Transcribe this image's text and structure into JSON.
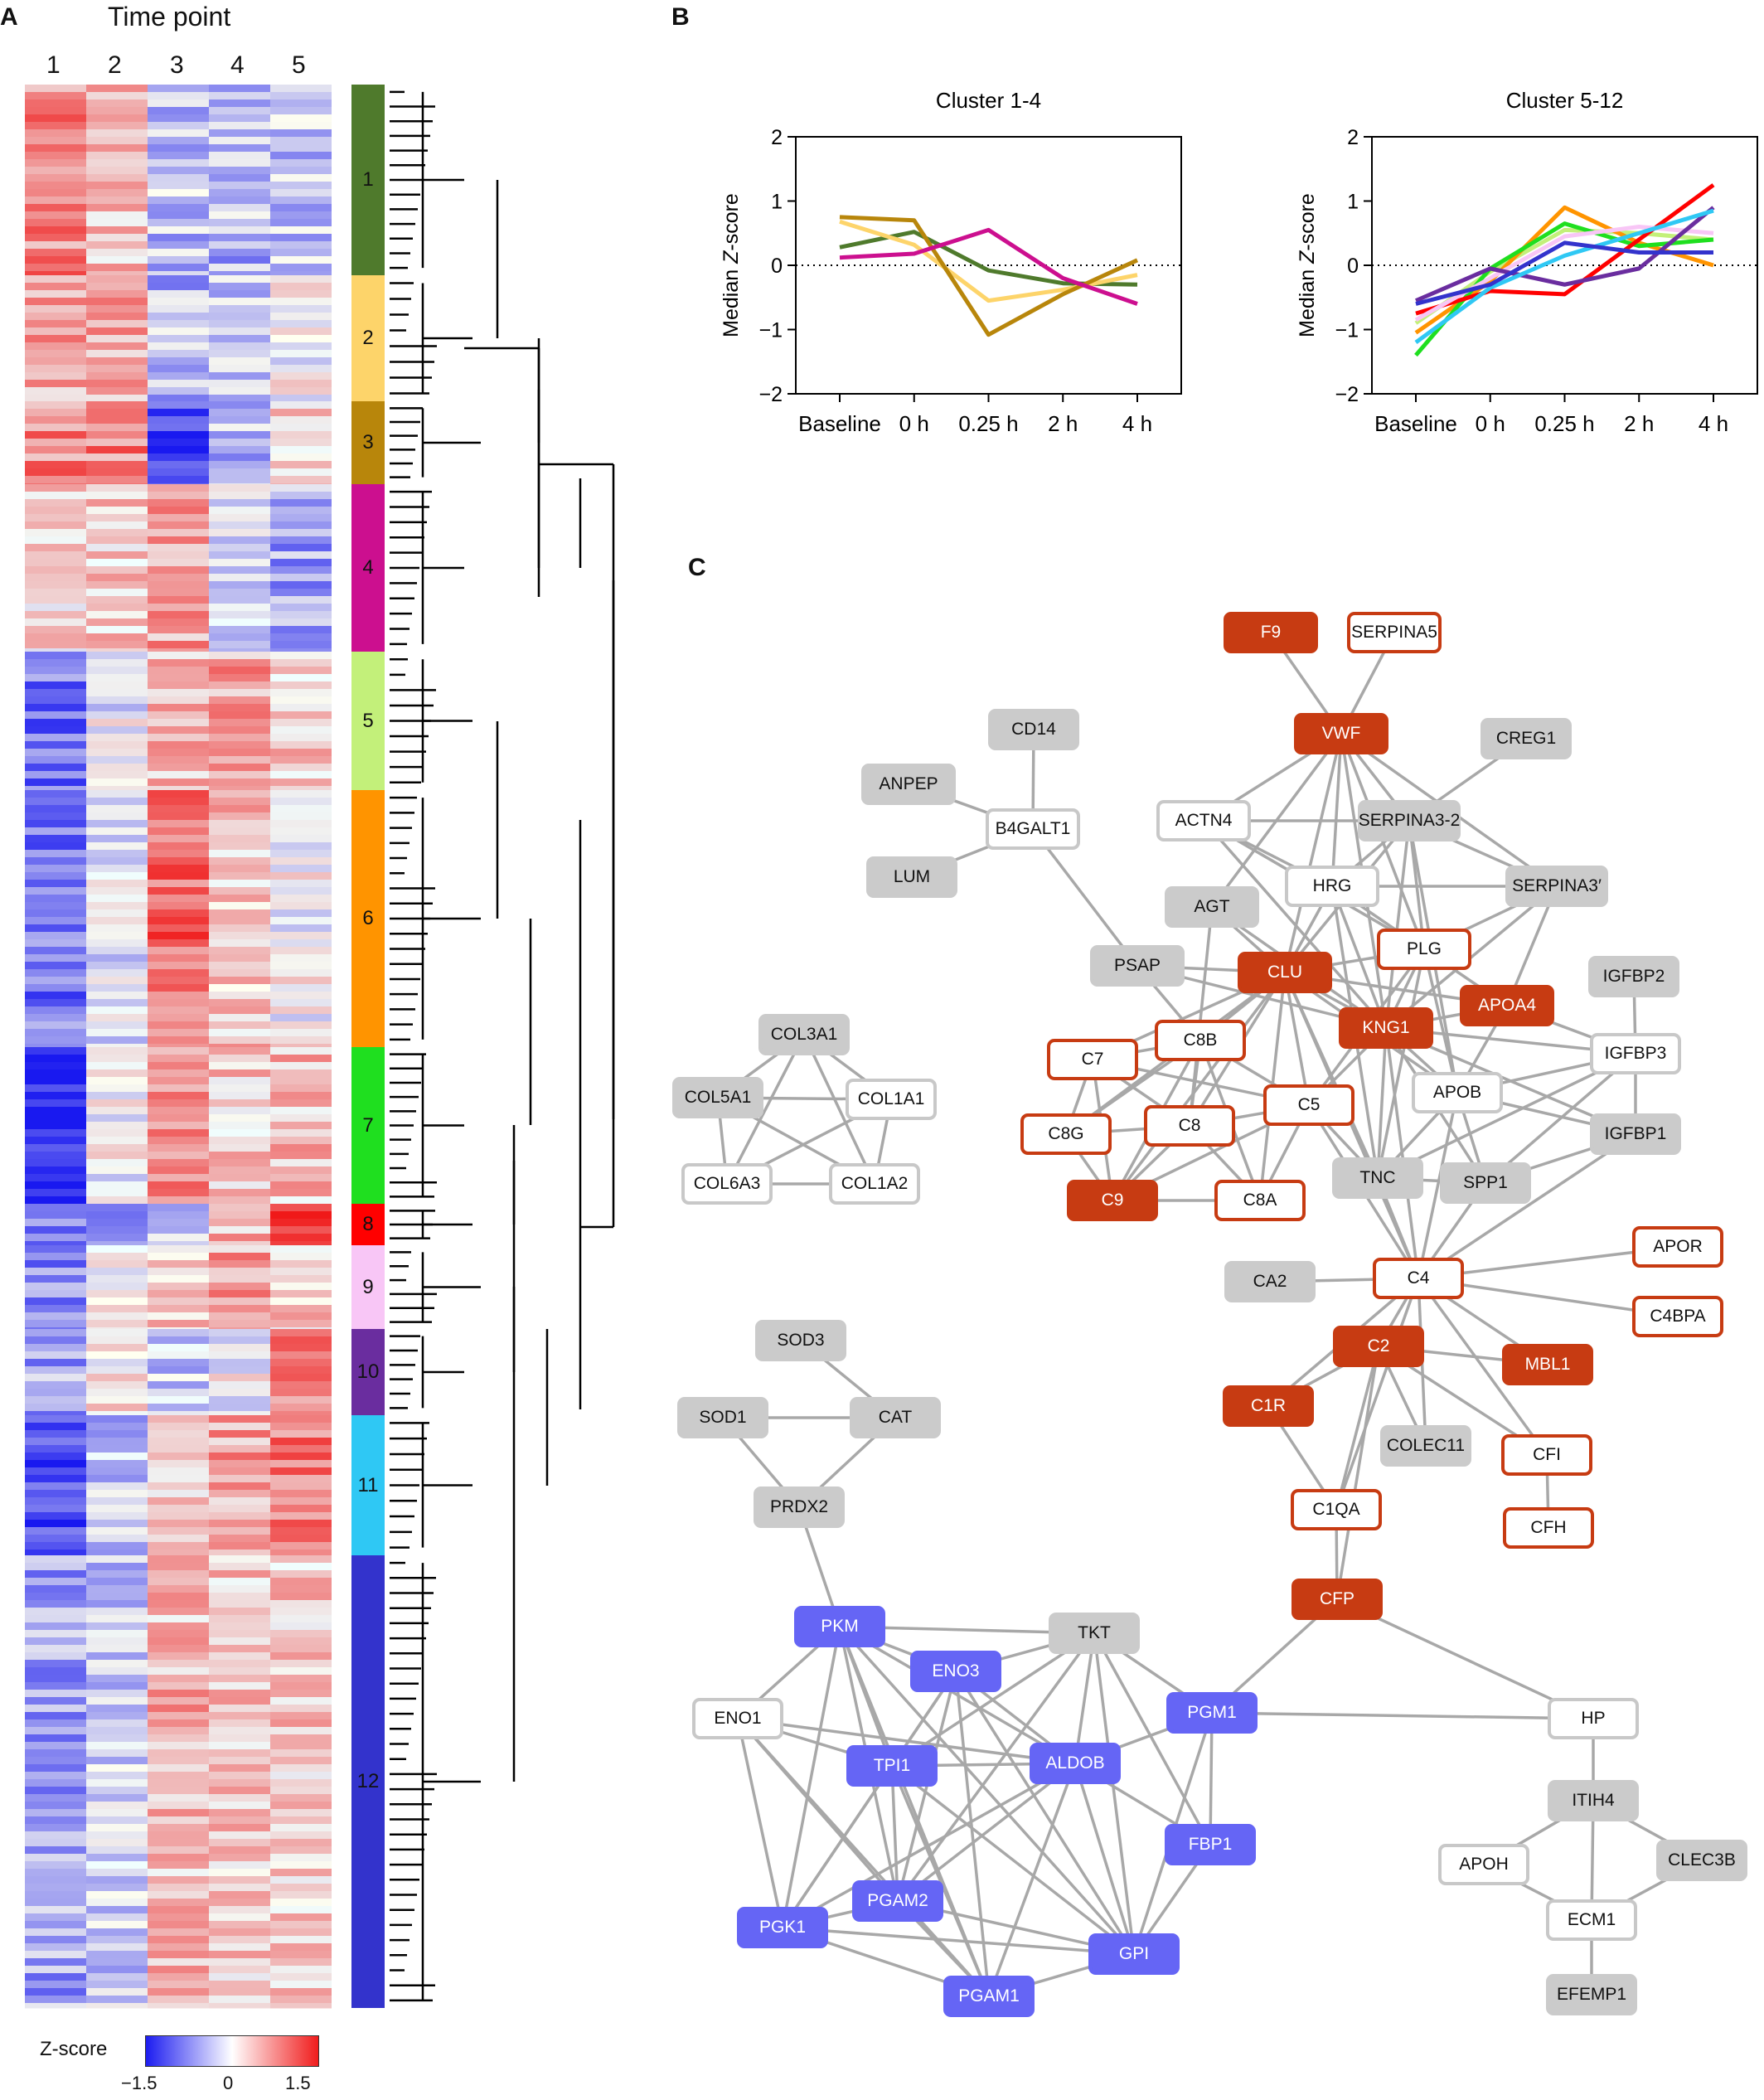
{
  "figure": {
    "panel_a": {
      "letter": "A",
      "title": "Time point",
      "columns": [
        "1",
        "2",
        "3",
        "4",
        "5"
      ],
      "colorbar": {
        "label": "Z-score",
        "ticks": [
          "−1.5",
          "0",
          "1.5"
        ],
        "low_color": "#1c1cf0",
        "mid_color": "#ffffff",
        "high_color": "#f01c1c"
      },
      "clusters": [
        {
          "label": "1",
          "color": "#4f7a2c"
        },
        {
          "label": "2",
          "color": "#fdd46a"
        },
        {
          "label": "3",
          "color": "#b8860b"
        },
        {
          "label": "4",
          "color": "#cc0f8f"
        },
        {
          "label": "5",
          "color": "#c3f07a"
        },
        {
          "label": "6",
          "color": "#ff9400"
        },
        {
          "label": "7",
          "color": "#1fdf1f"
        },
        {
          "label": "8",
          "color": "#ff0000"
        },
        {
          "label": "9",
          "color": "#f8c6f6"
        },
        {
          "label": "10",
          "color": "#6a2d9f"
        },
        {
          "label": "11",
          "color": "#2fc8f4"
        },
        {
          "label": "12",
          "color": "#3333cc"
        }
      ]
    },
    "panel_b": {
      "letter": "B"
    },
    "panel_c": {
      "letter": "C"
    }
  },
  "chart_data": [
    {
      "type": "line",
      "title": "Cluster 1-4",
      "ylabel": "Median Z-score",
      "categories": [
        "Baseline",
        "0 h",
        "0.25 h",
        "2 h",
        "4 h"
      ],
      "ylim": [
        -2,
        2
      ],
      "yticks": [
        "2",
        "1",
        "0",
        "−1",
        "−2"
      ],
      "zero_line": "dotted",
      "series": [
        {
          "cluster": "1",
          "color": "#4f7a2c",
          "values": [
            0.28,
            0.52,
            -0.08,
            -0.28,
            -0.3
          ]
        },
        {
          "cluster": "2",
          "color": "#fdd46a",
          "values": [
            0.68,
            0.32,
            -0.55,
            -0.38,
            -0.15
          ]
        },
        {
          "cluster": "3",
          "color": "#b8860b",
          "values": [
            0.75,
            0.7,
            -1.08,
            -0.45,
            0.08
          ]
        },
        {
          "cluster": "4",
          "color": "#cc0f8f",
          "values": [
            0.12,
            0.18,
            0.55,
            -0.2,
            -0.6
          ]
        }
      ]
    },
    {
      "type": "line",
      "title": "Cluster 5-12",
      "ylabel": "Median Z-score",
      "categories": [
        "Baseline",
        "0 h",
        "0.25 h",
        "2 h",
        "4 h"
      ],
      "ylim": [
        -2,
        2
      ],
      "yticks": [
        "2",
        "1",
        "0",
        "−1",
        "−2"
      ],
      "zero_line": "dotted",
      "series": [
        {
          "cluster": "5",
          "color": "#c3f07a",
          "values": [
            -0.9,
            -0.1,
            0.55,
            0.5,
            0.4
          ]
        },
        {
          "cluster": "6",
          "color": "#ff9400",
          "values": [
            -1.05,
            -0.25,
            0.9,
            0.35,
            0.0
          ]
        },
        {
          "cluster": "7",
          "color": "#1fdf1f",
          "values": [
            -1.4,
            -0.05,
            0.65,
            0.3,
            0.4
          ]
        },
        {
          "cluster": "8",
          "color": "#ff0000",
          "values": [
            -0.75,
            -0.4,
            -0.45,
            0.4,
            1.25
          ]
        },
        {
          "cluster": "9",
          "color": "#f8c6f6",
          "values": [
            -0.85,
            -0.2,
            0.45,
            0.6,
            0.5
          ]
        },
        {
          "cluster": "10",
          "color": "#6a2d9f",
          "values": [
            -0.55,
            -0.05,
            -0.3,
            -0.05,
            0.9
          ]
        },
        {
          "cluster": "11",
          "color": "#2fc8f4",
          "values": [
            -1.2,
            -0.35,
            0.15,
            0.5,
            0.85
          ]
        },
        {
          "cluster": "12",
          "color": "#3333cc",
          "values": [
            -0.6,
            -0.3,
            0.35,
            0.2,
            0.2
          ]
        }
      ]
    }
  ],
  "network": {
    "nodes": [
      {
        "id": "F9",
        "style": "red"
      },
      {
        "id": "SERPINA5",
        "style": "redout"
      },
      {
        "id": "VWF",
        "style": "red"
      },
      {
        "id": "CD14",
        "style": "gray"
      },
      {
        "id": "CREG1",
        "style": "gray"
      },
      {
        "id": "ANPEP",
        "style": "gray"
      },
      {
        "id": "B4GALT1",
        "style": "white"
      },
      {
        "id": "ACTN4",
        "style": "white"
      },
      {
        "id": "SERPINA3-2",
        "style": "gray"
      },
      {
        "id": "LUM",
        "style": "gray"
      },
      {
        "id": "HRG",
        "style": "white"
      },
      {
        "id": "SERPINA3′",
        "style": "gray"
      },
      {
        "id": "AGT",
        "style": "gray"
      },
      {
        "id": "PLG",
        "style": "redout"
      },
      {
        "id": "PSAP",
        "style": "gray"
      },
      {
        "id": "CLU",
        "style": "red"
      },
      {
        "id": "IGFBP2",
        "style": "gray"
      },
      {
        "id": "APOA4",
        "style": "red"
      },
      {
        "id": "KNG1",
        "style": "red"
      },
      {
        "id": "COL3A1",
        "style": "gray"
      },
      {
        "id": "C8B",
        "style": "redout"
      },
      {
        "id": "C7",
        "style": "redout"
      },
      {
        "id": "IGFBP3",
        "style": "white"
      },
      {
        "id": "APOB",
        "style": "white"
      },
      {
        "id": "COL5A1",
        "style": "gray"
      },
      {
        "id": "COL1A1",
        "style": "white"
      },
      {
        "id": "C5",
        "style": "redout"
      },
      {
        "id": "C8",
        "style": "redout"
      },
      {
        "id": "C8G",
        "style": "redout"
      },
      {
        "id": "IGFBP1",
        "style": "gray"
      },
      {
        "id": "TNC",
        "style": "gray"
      },
      {
        "id": "SPP1",
        "style": "gray"
      },
      {
        "id": "COL6A3",
        "style": "white"
      },
      {
        "id": "COL1A2",
        "style": "white"
      },
      {
        "id": "C9",
        "style": "red"
      },
      {
        "id": "C8A",
        "style": "redout"
      },
      {
        "id": "APOR",
        "style": "redout"
      },
      {
        "id": "C4",
        "style": "redout"
      },
      {
        "id": "CA2",
        "style": "gray"
      },
      {
        "id": "C4BPA",
        "style": "redout"
      },
      {
        "id": "SOD3",
        "style": "gray"
      },
      {
        "id": "C2",
        "style": "red"
      },
      {
        "id": "MBL1",
        "style": "red"
      },
      {
        "id": "C1R",
        "style": "red"
      },
      {
        "id": "SOD1",
        "style": "gray"
      },
      {
        "id": "CAT",
        "style": "gray"
      },
      {
        "id": "COLEC11",
        "style": "gray"
      },
      {
        "id": "CFI",
        "style": "redout"
      },
      {
        "id": "PRDX2",
        "style": "gray"
      },
      {
        "id": "C1QA",
        "style": "redout"
      },
      {
        "id": "CFH",
        "style": "redout"
      },
      {
        "id": "CFP",
        "style": "red"
      },
      {
        "id": "PKM",
        "style": "blue"
      },
      {
        "id": "TKT",
        "style": "gray"
      },
      {
        "id": "ENO3",
        "style": "blue"
      },
      {
        "id": "ENO1",
        "style": "white"
      },
      {
        "id": "PGM1",
        "style": "blue"
      },
      {
        "id": "HP",
        "style": "white"
      },
      {
        "id": "TPI1",
        "style": "blue"
      },
      {
        "id": "ALDOB",
        "style": "blue"
      },
      {
        "id": "ITIH4",
        "style": "gray"
      },
      {
        "id": "FBP1",
        "style": "blue"
      },
      {
        "id": "APOH",
        "style": "white"
      },
      {
        "id": "CLEC3B",
        "style": "gray"
      },
      {
        "id": "PGAM2",
        "style": "blue"
      },
      {
        "id": "ECM1",
        "style": "white"
      },
      {
        "id": "PGK1",
        "style": "blue"
      },
      {
        "id": "GPI",
        "style": "blue"
      },
      {
        "id": "PGAM1",
        "style": "blue"
      },
      {
        "id": "EFEMP1",
        "style": "gray"
      }
    ],
    "edges": [
      [
        "F9",
        "VWF"
      ],
      [
        "SERPINA5",
        "VWF"
      ],
      [
        "CD14",
        "B4GALT1"
      ],
      [
        "ANPEP",
        "B4GALT1"
      ],
      [
        "LUM",
        "B4GALT1"
      ],
      [
        "B4GALT1",
        "PSAP"
      ],
      [
        "VWF",
        "ACTN4"
      ],
      [
        "VWF",
        "HRG"
      ],
      [
        "VWF",
        "SERPINA3-2"
      ],
      [
        "VWF",
        "SERPINA3′"
      ],
      [
        "VWF",
        "CLU"
      ],
      [
        "VWF",
        "KNG1"
      ],
      [
        "VWF",
        "PLG"
      ],
      [
        "VWF",
        "AGT"
      ],
      [
        "CREG1",
        "SERPINA3-2"
      ],
      [
        "ACTN4",
        "SERPINA3-2"
      ],
      [
        "ACTN4",
        "HRG"
      ],
      [
        "ACTN4",
        "KNG1"
      ],
      [
        "ACTN4",
        "PLG"
      ],
      [
        "SERPINA3-2",
        "HRG"
      ],
      [
        "SERPINA3-2",
        "SERPINA3′"
      ],
      [
        "SERPINA3-2",
        "KNG1"
      ],
      [
        "SERPINA3-2",
        "PLG"
      ],
      [
        "SERPINA3-2",
        "APOB"
      ],
      [
        "SERPINA3-2",
        "CLU"
      ],
      [
        "HRG",
        "SERPINA3′"
      ],
      [
        "HRG",
        "PLG"
      ],
      [
        "HRG",
        "KNG1"
      ],
      [
        "HRG",
        "CLU"
      ],
      [
        "HRG",
        "TNC"
      ],
      [
        "SERPINA3′",
        "KNG1"
      ],
      [
        "SERPINA3′",
        "APOA4"
      ],
      [
        "SERPINA3′",
        "PLG"
      ],
      [
        "AGT",
        "CLU"
      ],
      [
        "AGT",
        "KNG1"
      ],
      [
        "AGT",
        "C8"
      ],
      [
        "PSAP",
        "CLU"
      ],
      [
        "PSAP",
        "C8B"
      ],
      [
        "PSAP",
        "KNG1"
      ],
      [
        "CLU",
        "KNG1"
      ],
      [
        "CLU",
        "C8B"
      ],
      [
        "CLU",
        "C5"
      ],
      [
        "CLU",
        "C8"
      ],
      [
        "CLU",
        "C9"
      ],
      [
        "CLU",
        "APOB"
      ],
      [
        "CLU",
        "C7"
      ],
      [
        "CLU",
        "C4"
      ],
      [
        "CLU",
        "C8A"
      ],
      [
        "CLU",
        "APOA4"
      ],
      [
        "CLU",
        "PLG"
      ],
      [
        "CLU",
        "TNC"
      ],
      [
        "CLU",
        "C8G"
      ],
      [
        "PLG",
        "KNG1"
      ],
      [
        "PLG",
        "APOA4"
      ],
      [
        "PLG",
        "APOB"
      ],
      [
        "PLG",
        "C5"
      ],
      [
        "PLG",
        "TNC"
      ],
      [
        "KNG1",
        "APOA4"
      ],
      [
        "KNG1",
        "APOB"
      ],
      [
        "KNG1",
        "C5"
      ],
      [
        "KNG1",
        "TNC"
      ],
      [
        "KNG1",
        "SPP1"
      ],
      [
        "KNG1",
        "IGFBP3"
      ],
      [
        "KNG1",
        "IGFBP1"
      ],
      [
        "KNG1",
        "C4"
      ],
      [
        "APOA4",
        "APOB"
      ],
      [
        "APOA4",
        "IGFBP3"
      ],
      [
        "IGFBP2",
        "IGFBP3"
      ],
      [
        "IGFBP3",
        "IGFBP1"
      ],
      [
        "IGFBP3",
        "APOB"
      ],
      [
        "IGFBP3",
        "TNC"
      ],
      [
        "IGFBP3",
        "SPP1"
      ],
      [
        "IGFBP1",
        "SPP1"
      ],
      [
        "IGFBP1",
        "APOB"
      ],
      [
        "IGFBP1",
        "C4"
      ],
      [
        "APOB",
        "TNC"
      ],
      [
        "APOB",
        "SPP1"
      ],
      [
        "APOB",
        "C4"
      ],
      [
        "C8B",
        "C7"
      ],
      [
        "C8B",
        "C8"
      ],
      [
        "C8B",
        "C5"
      ],
      [
        "C8B",
        "C9"
      ],
      [
        "C8B",
        "C8A"
      ],
      [
        "C8B",
        "C8G"
      ],
      [
        "C7",
        "C8"
      ],
      [
        "C7",
        "C8G"
      ],
      [
        "C7",
        "C5"
      ],
      [
        "C7",
        "C9"
      ],
      [
        "C8",
        "C5"
      ],
      [
        "C8",
        "C8G"
      ],
      [
        "C8",
        "C9"
      ],
      [
        "C8",
        "C8A"
      ],
      [
        "C5",
        "C9"
      ],
      [
        "C5",
        "C8A"
      ],
      [
        "C5",
        "C4"
      ],
      [
        "C5",
        "TNC"
      ],
      [
        "C8G",
        "C9"
      ],
      [
        "C9",
        "C8A"
      ],
      [
        "TNC",
        "SPP1"
      ],
      [
        "TNC",
        "C4"
      ],
      [
        "SPP1",
        "C4"
      ],
      [
        "CA2",
        "C4"
      ],
      [
        "C4",
        "APOR"
      ],
      [
        "C4",
        "C4BPA"
      ],
      [
        "C4",
        "C2"
      ],
      [
        "C4",
        "MBL1"
      ],
      [
        "C4",
        "C1R"
      ],
      [
        "C4",
        "COLEC11"
      ],
      [
        "C4",
        "CFI"
      ],
      [
        "C4",
        "C1QA"
      ],
      [
        "C2",
        "C1R"
      ],
      [
        "C2",
        "MBL1"
      ],
      [
        "C2",
        "COLEC11"
      ],
      [
        "C2",
        "C1QA"
      ],
      [
        "C2",
        "CFI"
      ],
      [
        "C2",
        "CFP"
      ],
      [
        "C1R",
        "C1QA"
      ],
      [
        "CFI",
        "CFH"
      ],
      [
        "C1QA",
        "CFP"
      ],
      [
        "CFP",
        "PGM1"
      ],
      [
        "CFP",
        "HP"
      ],
      [
        "COL3A1",
        "COL5A1"
      ],
      [
        "COL3A1",
        "COL1A1"
      ],
      [
        "COL3A1",
        "COL6A3"
      ],
      [
        "COL3A1",
        "COL1A2"
      ],
      [
        "COL5A1",
        "COL1A1"
      ],
      [
        "COL5A1",
        "COL6A3"
      ],
      [
        "COL5A1",
        "COL1A2"
      ],
      [
        "COL1A1",
        "COL6A3"
      ],
      [
        "COL1A1",
        "COL1A2"
      ],
      [
        "COL6A3",
        "COL1A2"
      ],
      [
        "SOD3",
        "CAT"
      ],
      [
        "SOD1",
        "CAT"
      ],
      [
        "CAT",
        "PRDX2"
      ],
      [
        "SOD1",
        "PRDX2"
      ],
      [
        "PRDX2",
        "PKM"
      ],
      [
        "PKM",
        "TKT"
      ],
      [
        "PKM",
        "ENO3"
      ],
      [
        "PKM",
        "ENO1"
      ],
      [
        "PKM",
        "TPI1"
      ],
      [
        "PKM",
        "ALDOB"
      ],
      [
        "PKM",
        "PGK1"
      ],
      [
        "PKM",
        "PGAM2"
      ],
      [
        "PKM",
        "GPI"
      ],
      [
        "PKM",
        "PGAM1"
      ],
      [
        "TKT",
        "ENO3"
      ],
      [
        "TKT",
        "PGM1"
      ],
      [
        "TKT",
        "ALDOB"
      ],
      [
        "TKT",
        "TPI1"
      ],
      [
        "TKT",
        "GPI"
      ],
      [
        "TKT",
        "PGAM2"
      ],
      [
        "TKT",
        "FBP1"
      ],
      [
        "ENO3",
        "TPI1"
      ],
      [
        "ENO3",
        "ALDOB"
      ],
      [
        "ENO3",
        "PGAM2"
      ],
      [
        "ENO3",
        "PGAM1"
      ],
      [
        "ENO3",
        "PGK1"
      ],
      [
        "ENO3",
        "GPI"
      ],
      [
        "ENO1",
        "TPI1"
      ],
      [
        "ENO1",
        "PGK1"
      ],
      [
        "ENO1",
        "PGAM2"
      ],
      [
        "ENO1",
        "PGAM1"
      ],
      [
        "ENO1",
        "ALDOB"
      ],
      [
        "PGM1",
        "ALDOB"
      ],
      [
        "PGM1",
        "FBP1"
      ],
      [
        "PGM1",
        "HP"
      ],
      [
        "PGM1",
        "GPI"
      ],
      [
        "TPI1",
        "ALDOB"
      ],
      [
        "TPI1",
        "PGAM2"
      ],
      [
        "TPI1",
        "PGK1"
      ],
      [
        "TPI1",
        "GPI"
      ],
      [
        "TPI1",
        "PGAM1"
      ],
      [
        "ALDOB",
        "FBP1"
      ],
      [
        "ALDOB",
        "GPI"
      ],
      [
        "ALDOB",
        "PGAM2"
      ],
      [
        "ALDOB",
        "PGAM1"
      ],
      [
        "ALDOB",
        "PGK1"
      ],
      [
        "FBP1",
        "GPI"
      ],
      [
        "PGAM2",
        "PGK1"
      ],
      [
        "PGAM2",
        "GPI"
      ],
      [
        "PGAM2",
        "PGAM1"
      ],
      [
        "PGK1",
        "GPI"
      ],
      [
        "PGK1",
        "PGAM1"
      ],
      [
        "GPI",
        "PGAM1"
      ],
      [
        "HP",
        "ITIH4"
      ],
      [
        "ITIH4",
        "APOH"
      ],
      [
        "ITIH4",
        "CLEC3B"
      ],
      [
        "ITIH4",
        "ECM1"
      ],
      [
        "APOH",
        "ECM1"
      ],
      [
        "CLEC3B",
        "ECM1"
      ],
      [
        "ECM1",
        "EFEMP1"
      ]
    ]
  }
}
